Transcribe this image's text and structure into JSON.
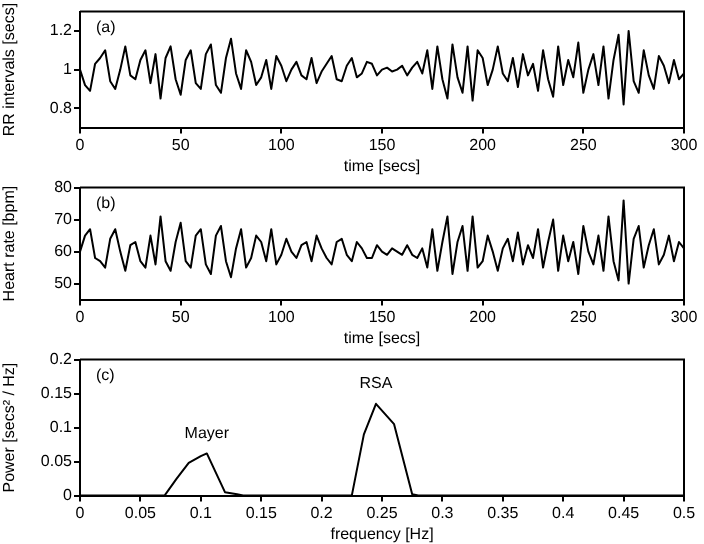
{
  "chart_data": [
    {
      "type": "line",
      "xlabel": "time [secs]",
      "ylabel": "RR intervals [secs]",
      "annotations": [
        "(a)"
      ],
      "xlim": [
        0,
        300
      ],
      "xticks": [
        0,
        50,
        100,
        150,
        200,
        250,
        300
      ],
      "ylim": [
        0.7,
        1.3
      ],
      "yticks": [
        0.8,
        1,
        1.2
      ],
      "grid": false,
      "legend": false,
      "marker": "none",
      "line_style": "solid",
      "x": [
        0,
        2.5,
        5,
        7.5,
        10,
        12.5,
        15,
        17.5,
        20,
        22.5,
        25,
        27.5,
        30,
        32.5,
        35,
        37.5,
        40,
        42.5,
        45,
        47.5,
        50,
        52.5,
        55,
        57.5,
        60,
        62.5,
        65,
        67.5,
        70,
        72.5,
        75,
        77.5,
        80,
        82.5,
        85,
        87.5,
        90,
        92.5,
        95,
        97.5,
        100,
        102.5,
        105,
        107.5,
        110,
        112.5,
        115,
        117.5,
        120,
        122.5,
        125,
        127.5,
        130,
        132.5,
        135,
        137.5,
        140,
        142.5,
        145,
        147.5,
        150,
        152.5,
        155,
        157.5,
        160,
        162.5,
        165,
        167.5,
        170,
        172.5,
        175,
        177.5,
        180,
        182.5,
        185,
        187.5,
        190,
        192.5,
        195,
        197.5,
        200,
        202.5,
        205,
        207.5,
        210,
        212.5,
        215,
        217.5,
        220,
        222.5,
        225,
        227.5,
        230,
        232.5,
        235,
        237.5,
        240,
        242.5,
        245,
        247.5,
        250,
        252.5,
        255,
        257.5,
        260,
        262.5,
        265,
        267.5,
        270,
        272.5,
        275,
        277.5,
        280,
        282.5,
        285,
        287.5,
        290,
        292.5,
        295,
        297.5,
        300
      ],
      "series": [
        {
          "color": "#000000",
          "values": [
            1.0,
            0.92,
            0.89,
            1.03,
            1.06,
            1.1,
            0.94,
            0.9,
            1.0,
            1.12,
            0.97,
            0.95,
            1.05,
            1.1,
            0.93,
            1.08,
            0.85,
            1.06,
            1.12,
            0.95,
            0.87,
            1.05,
            1.1,
            0.93,
            0.9,
            1.08,
            1.13,
            0.92,
            0.88,
            1.06,
            1.16,
            0.98,
            0.9,
            1.1,
            1.04,
            0.92,
            0.96,
            1.05,
            0.9,
            1.07,
            1.02,
            0.94,
            1.0,
            1.04,
            0.97,
            0.95,
            1.06,
            0.93,
            0.99,
            1.03,
            1.07,
            0.95,
            0.94,
            1.02,
            1.06,
            0.96,
            0.98,
            1.04,
            1.03,
            0.97,
            1.0,
            1.01,
            0.99,
            1.0,
            1.02,
            0.97,
            1.01,
            1.04,
            0.98,
            1.1,
            0.9,
            1.12,
            0.95,
            0.85,
            1.13,
            0.96,
            0.88,
            1.12,
            0.84,
            1.1,
            1.06,
            0.92,
            1.0,
            1.12,
            0.98,
            0.94,
            1.06,
            0.91,
            1.08,
            0.97,
            1.03,
            0.89,
            1.1,
            0.95,
            0.86,
            1.12,
            0.92,
            1.05,
            0.96,
            1.14,
            0.88,
            1.0,
            1.08,
            0.92,
            1.12,
            0.85,
            1.05,
            1.18,
            0.82,
            1.2,
            0.94,
            0.88,
            1.1,
            0.97,
            0.9,
            1.07,
            1.02,
            0.93,
            1.05,
            0.95,
            0.98
          ]
        }
      ]
    },
    {
      "type": "line",
      "xlabel": "time [secs]",
      "ylabel": "Heart rate [bpm]",
      "annotations": [
        "(b)"
      ],
      "xlim": [
        0,
        300
      ],
      "xticks": [
        0,
        50,
        100,
        150,
        200,
        250,
        300
      ],
      "ylim": [
        45,
        80
      ],
      "yticks": [
        50,
        60,
        70,
        80
      ],
      "grid": false,
      "legend": false,
      "marker": "none",
      "line_style": "solid",
      "x": [
        0,
        2.5,
        5,
        7.5,
        10,
        12.5,
        15,
        17.5,
        20,
        22.5,
        25,
        27.5,
        30,
        32.5,
        35,
        37.5,
        40,
        42.5,
        45,
        47.5,
        50,
        52.5,
        55,
        57.5,
        60,
        62.5,
        65,
        67.5,
        70,
        72.5,
        75,
        77.5,
        80,
        82.5,
        85,
        87.5,
        90,
        92.5,
        95,
        97.5,
        100,
        102.5,
        105,
        107.5,
        110,
        112.5,
        115,
        117.5,
        120,
        122.5,
        125,
        127.5,
        130,
        132.5,
        135,
        137.5,
        140,
        142.5,
        145,
        147.5,
        150,
        152.5,
        155,
        157.5,
        160,
        162.5,
        165,
        167.5,
        170,
        172.5,
        175,
        177.5,
        180,
        182.5,
        185,
        187.5,
        190,
        192.5,
        195,
        197.5,
        200,
        202.5,
        205,
        207.5,
        210,
        212.5,
        215,
        217.5,
        220,
        222.5,
        225,
        227.5,
        230,
        232.5,
        235,
        237.5,
        240,
        242.5,
        245,
        247.5,
        250,
        252.5,
        255,
        257.5,
        260,
        262.5,
        265,
        267.5,
        270,
        272.5,
        275,
        277.5,
        280,
        282.5,
        285,
        287.5,
        290,
        292.5,
        295,
        297.5,
        300
      ],
      "series": [
        {
          "color": "#000000",
          "values": [
            60,
            65,
            67,
            58,
            57,
            55,
            64,
            67,
            60,
            54,
            62,
            63,
            57,
            55,
            65,
            56,
            71,
            57,
            54,
            63,
            69,
            57,
            55,
            65,
            67,
            56,
            53,
            65,
            68,
            57,
            52,
            61,
            67,
            55,
            58,
            65,
            63,
            57,
            67,
            56,
            59,
            64,
            60,
            58,
            62,
            63,
            57,
            65,
            61,
            58,
            56,
            63,
            64,
            59,
            57,
            63,
            61,
            58,
            58,
            62,
            60,
            59,
            61,
            60,
            59,
            62,
            59,
            58,
            61,
            55,
            67,
            54,
            63,
            71,
            53,
            63,
            68,
            54,
            71,
            55,
            57,
            65,
            60,
            54,
            61,
            64,
            57,
            66,
            56,
            62,
            58,
            67,
            55,
            63,
            70,
            54,
            65,
            57,
            63,
            53,
            68,
            60,
            56,
            65,
            54,
            71,
            57,
            51,
            76,
            50,
            64,
            68,
            55,
            62,
            67,
            56,
            59,
            65,
            57,
            63,
            61
          ]
        }
      ]
    },
    {
      "type": "line",
      "xlabel": "frequency [Hz]",
      "ylabel": "Power [secs² / Hz]",
      "annotations": [
        "(c)",
        {
          "text": "Mayer",
          "x": 0.105,
          "y": 0.062
        },
        {
          "text": "RSA",
          "x": 0.245,
          "y": 0.135
        }
      ],
      "xlim": [
        0,
        0.5
      ],
      "xticks": [
        0,
        0.05,
        0.1,
        0.15,
        0.2,
        0.25,
        0.3,
        0.35,
        0.4,
        0.45,
        0.5
      ],
      "ylim": [
        0,
        0.2
      ],
      "yticks": [
        0,
        0.05,
        0.1,
        0.15,
        0.2
      ],
      "grid": false,
      "legend": false,
      "marker": "none",
      "line_style": "solid",
      "x": [
        0,
        0.07,
        0.08,
        0.09,
        0.1,
        0.105,
        0.12,
        0.13,
        0.135,
        0.225,
        0.235,
        0.245,
        0.26,
        0.275,
        0.28,
        0.5
      ],
      "series": [
        {
          "color": "#000000",
          "values": [
            0,
            0,
            0.025,
            0.048,
            0.058,
            0.062,
            0.005,
            0.002,
            0,
            0,
            0.09,
            0.135,
            0.105,
            0.002,
            0,
            0
          ]
        }
      ]
    }
  ]
}
